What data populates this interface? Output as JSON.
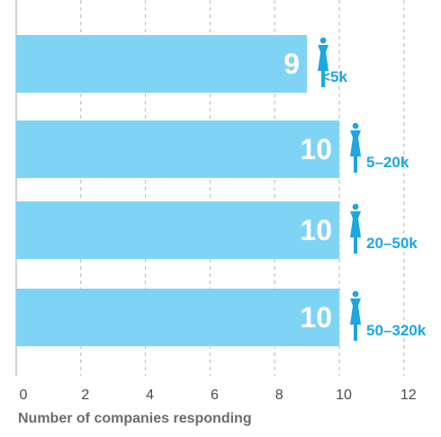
{
  "chart_data": {
    "type": "bar",
    "orientation": "horizontal",
    "categories": [
      "<5k",
      "5–20k",
      "20–50k",
      "50–320k"
    ],
    "values": [
      9,
      10,
      10,
      10
    ],
    "data_labels": [
      "9",
      "10",
      "10",
      "10"
    ],
    "title": "",
    "xlabel": "Number of companies responding",
    "ylabel": "",
    "xlim": [
      0,
      12
    ],
    "xticks": [
      "0",
      "2",
      "4",
      "6",
      "8",
      "10",
      "12"
    ],
    "grid": "vertical dashed",
    "legend": "none",
    "category_icon": "person-icon",
    "colors": {
      "bar": "#7fd4f5",
      "accent": "#1ca7e0",
      "bar_label": "#ffffff",
      "grid": "#b5b5b5",
      "tick_text": "#4a4a4a",
      "axis_title": "#6b6b6b"
    }
  }
}
